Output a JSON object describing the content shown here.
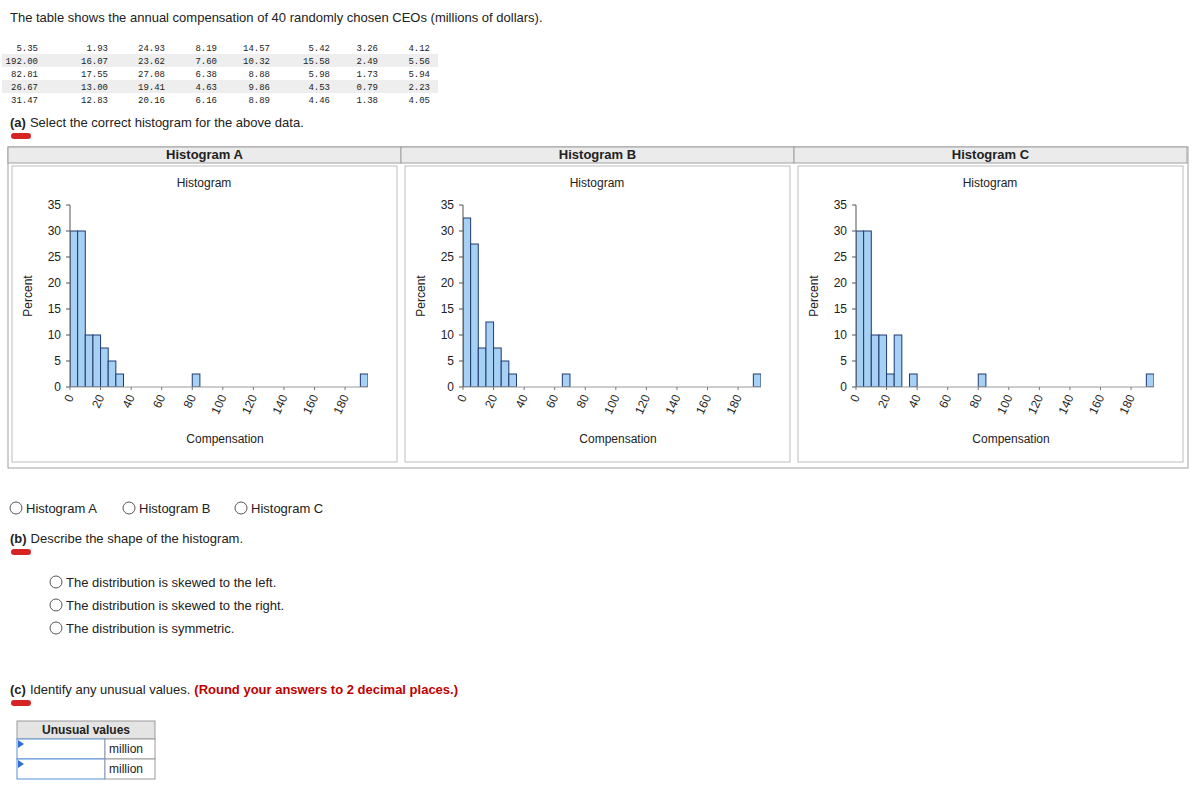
{
  "question": "The table shows the annual compensation of 40 randomly chosen CEOs (millions of dollars).",
  "table": {
    "rows": [
      [
        "5.35",
        "1.93",
        "24.93",
        "8.19",
        "14.57",
        "5.42",
        "3.26",
        "4.12"
      ],
      [
        "192.00",
        "16.07",
        "23.62",
        "7.60",
        "10.32",
        "15.58",
        "2.49",
        "5.56"
      ],
      [
        "82.81",
        "17.55",
        "27.08",
        "6.38",
        "8.88",
        "5.98",
        "1.73",
        "5.94"
      ],
      [
        "26.67",
        "13.00",
        "19.41",
        "4.63",
        "9.86",
        "4.53",
        "0.79",
        "2.23"
      ],
      [
        "31.47",
        "12.83",
        "20.16",
        "6.16",
        "8.89",
        "4.46",
        "1.38",
        "4.05"
      ]
    ]
  },
  "part_a": {
    "label": "(a)",
    "text": "Select the correct histogram for the above data.",
    "options": [
      "Histogram A",
      "Histogram B",
      "Histogram C"
    ]
  },
  "chart_data": [
    {
      "type": "histogram",
      "title": "Histogram A",
      "subtitle": "Histogram",
      "x_label": "Compensation",
      "y_label": "Percent",
      "bins": [
        0,
        5,
        10,
        15,
        20,
        25,
        30,
        35,
        40,
        45,
        50,
        55,
        60,
        65,
        70,
        75,
        80,
        85,
        90,
        95,
        100,
        105,
        110,
        115,
        120,
        125,
        130,
        135,
        140,
        145,
        150,
        155,
        160,
        165,
        170,
        175,
        180,
        185,
        190,
        195
      ],
      "values": [
        30,
        30,
        10,
        10,
        7.5,
        5,
        2.5,
        0,
        0,
        0,
        0,
        0,
        0,
        0,
        0,
        0,
        2.5,
        0,
        0,
        0,
        0,
        0,
        0,
        0,
        0,
        0,
        0,
        0,
        0,
        0,
        0,
        0,
        0,
        0,
        0,
        0,
        0,
        0,
        2.5
      ],
      "color": "#a6d1f4",
      "xlim": [
        0,
        195
      ],
      "xticks": [
        0,
        20,
        40,
        60,
        80,
        100,
        120,
        140,
        160,
        180
      ],
      "ylim": [
        0,
        35
      ],
      "yticks": [
        0,
        5,
        10,
        15,
        20,
        25,
        30,
        35
      ]
    },
    {
      "type": "histogram",
      "title": "Histogram B",
      "subtitle": "Histogram",
      "x_label": "Compensation",
      "y_label": "Percent",
      "bins": [
        0,
        5,
        10,
        15,
        20,
        25,
        30,
        35,
        40,
        45,
        50,
        55,
        60,
        65,
        70,
        75,
        80,
        85,
        90,
        95,
        100,
        105,
        110,
        115,
        120,
        125,
        130,
        135,
        140,
        145,
        150,
        155,
        160,
        165,
        170,
        175,
        180,
        185,
        190,
        195
      ],
      "values": [
        32.5,
        27.5,
        7.5,
        12.5,
        7.5,
        5,
        2.5,
        0,
        0,
        0,
        0,
        0,
        0,
        2.5,
        0,
        0,
        0,
        0,
        0,
        0,
        0,
        0,
        0,
        0,
        0,
        0,
        0,
        0,
        0,
        0,
        0,
        0,
        0,
        0,
        0,
        0,
        0,
        0,
        2.5
      ],
      "color": "#a6d1f4",
      "xlim": [
        0,
        195
      ],
      "xticks": [
        0,
        20,
        40,
        60,
        80,
        100,
        120,
        140,
        160,
        180
      ],
      "ylim": [
        0,
        35
      ],
      "yticks": [
        0,
        5,
        10,
        15,
        20,
        25,
        30,
        35
      ]
    },
    {
      "type": "histogram",
      "title": "Histogram C",
      "subtitle": "Histogram",
      "x_label": "Compensation",
      "y_label": "Percent",
      "bins": [
        0,
        5,
        10,
        15,
        20,
        25,
        30,
        35,
        40,
        45,
        50,
        55,
        60,
        65,
        70,
        75,
        80,
        85,
        90,
        95,
        100,
        105,
        110,
        115,
        120,
        125,
        130,
        135,
        140,
        145,
        150,
        155,
        160,
        165,
        170,
        175,
        180,
        185,
        190,
        195
      ],
      "values": [
        30,
        30,
        10,
        10,
        2.5,
        10,
        0,
        2.5,
        0,
        0,
        0,
        0,
        0,
        0,
        0,
        0,
        2.5,
        0,
        0,
        0,
        0,
        0,
        0,
        0,
        0,
        0,
        0,
        0,
        0,
        0,
        0,
        0,
        0,
        0,
        0,
        0,
        0,
        0,
        2.5
      ],
      "color": "#a6d1f4",
      "xlim": [
        0,
        195
      ],
      "xticks": [
        0,
        20,
        40,
        60,
        80,
        100,
        120,
        140,
        160,
        180
      ],
      "ylim": [
        0,
        35
      ],
      "yticks": [
        0,
        5,
        10,
        15,
        20,
        25,
        30,
        35
      ]
    }
  ],
  "part_b": {
    "label": "(b)",
    "text": "Describe the shape of the histogram.",
    "options": [
      "The distribution is skewed to the left.",
      "The distribution is skewed to the right.",
      "The distribution is symmetric."
    ]
  },
  "part_c": {
    "label": "(c)",
    "text": "Identify any unusual values.",
    "note": "(Round your answers to 2 decimal places.)",
    "answer_table": {
      "header": "Unusual values",
      "units": [
        "million",
        "million"
      ]
    }
  }
}
